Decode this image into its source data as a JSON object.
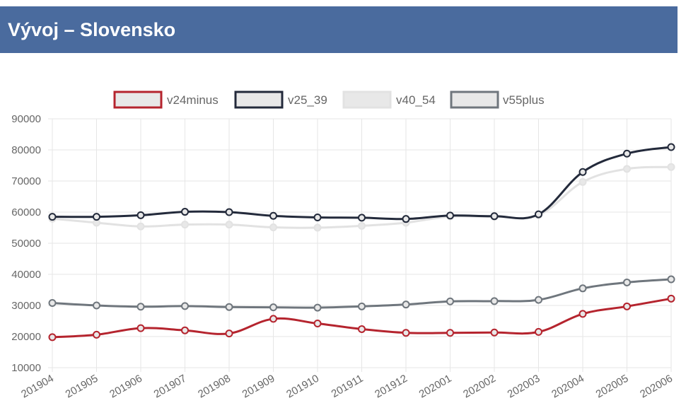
{
  "header": {
    "title": "Vývoj – Slovensko"
  },
  "chart_data": {
    "type": "line",
    "title": "",
    "xlabel": "",
    "ylabel": "",
    "ylim": [
      10000,
      90000
    ],
    "y_ticks": [
      "90000",
      "80000",
      "70000",
      "60000",
      "50000",
      "40000",
      "30000",
      "20000",
      "10000"
    ],
    "grid": true,
    "legend_position": "top",
    "categories": [
      "201904",
      "201905",
      "201906",
      "201907",
      "201908",
      "201909",
      "201910",
      "201911",
      "201912",
      "202001",
      "202002",
      "202003",
      "202004",
      "202005",
      "202006"
    ],
    "series": [
      {
        "name": "v24minus",
        "color": "#b5242e",
        "fill": "#e8e8e8",
        "values": [
          19800,
          20600,
          22700,
          22000,
          21000,
          25700,
          24200,
          22400,
          21200,
          21200,
          21300,
          21500,
          27300,
          29700,
          32200
        ]
      },
      {
        "name": "v25_39",
        "color": "#232a3b",
        "fill": "#e8e8e8",
        "values": [
          58500,
          58500,
          59000,
          60100,
          60000,
          58800,
          58300,
          58200,
          57800,
          58900,
          58700,
          59300,
          72900,
          78800,
          80900
        ]
      },
      {
        "name": "v40_54",
        "color": "#e2e2e2",
        "fill": "#e8e8e8",
        "values": [
          57900,
          56600,
          55400,
          56000,
          56000,
          55100,
          55000,
          55600,
          56600,
          58600,
          58500,
          59000,
          69700,
          73900,
          74500
        ]
      },
      {
        "name": "v55plus",
        "color": "#6f767d",
        "fill": "#e8e8e8",
        "values": [
          30800,
          30000,
          29600,
          29800,
          29500,
          29400,
          29300,
          29700,
          30300,
          31300,
          31400,
          31800,
          35500,
          37400,
          38400
        ]
      }
    ]
  }
}
